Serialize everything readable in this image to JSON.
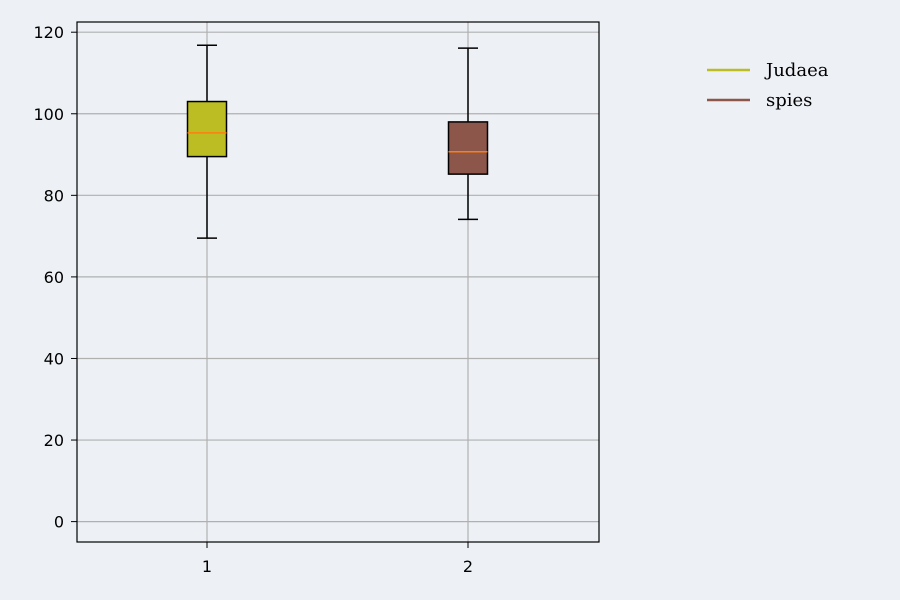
{
  "chart_data": {
    "type": "box",
    "title": "",
    "xlabel": "",
    "ylabel": "",
    "categories": [
      "1",
      "2"
    ],
    "ylim": [
      -5,
      122.5
    ],
    "yticks": [
      0,
      20,
      40,
      60,
      80,
      100,
      120
    ],
    "grid": true,
    "legend_placement": "outside top-right",
    "series": [
      {
        "name": "Judaea",
        "color": "#bcbd22",
        "whisker_low": 69.5,
        "q1": 89.5,
        "median": 95.3,
        "q3": 103.0,
        "whisker_high": 116.8
      },
      {
        "name": "spies",
        "color": "#8c564b",
        "whisker_low": 74.1,
        "q1": 85.2,
        "median": 90.7,
        "q3": 98.0,
        "whisker_high": 116.1
      }
    ],
    "median_color": "#ff7f0e"
  }
}
